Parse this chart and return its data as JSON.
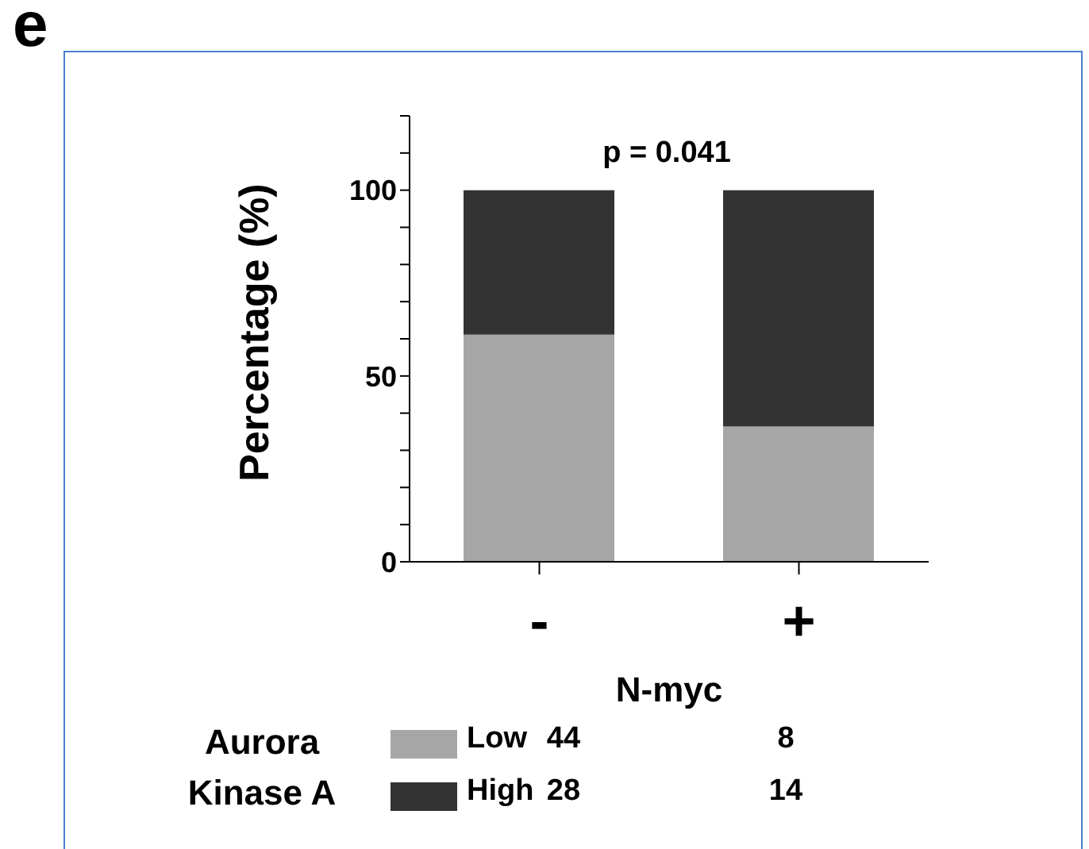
{
  "chart_data": {
    "type": "bar",
    "stacked": true,
    "categories": [
      "-",
      "+"
    ],
    "xlabel": "N-myc",
    "ylabel": "Percentage (%)",
    "ylim": [
      0,
      120
    ],
    "yticks": [
      0,
      {
        "value": 10,
        "label": null
      },
      {
        "value": 20,
        "label": null
      },
      {
        "value": 30,
        "label": null
      },
      {
        "value": 40,
        "label": null
      },
      50,
      {
        "value": 60,
        "label": null
      },
      {
        "value": 70,
        "label": null
      },
      {
        "value": 80,
        "label": null
      },
      {
        "value": 90,
        "label": null
      },
      100,
      {
        "value": 110,
        "label": null
      },
      {
        "value": 120,
        "label": null
      }
    ],
    "series": [
      {
        "name": "Low",
        "color": "#a6a6a6",
        "values": [
          61.1,
          36.4
        ]
      },
      {
        "name": "High",
        "color": "#333333",
        "values": [
          38.9,
          63.6
        ]
      }
    ],
    "legend": "bottom",
    "legend_title": "Aurora Kinase A",
    "grid": false,
    "annotations": [
      "e",
      "p = 0.041",
      "44",
      "8",
      "28",
      "14"
    ]
  }
}
